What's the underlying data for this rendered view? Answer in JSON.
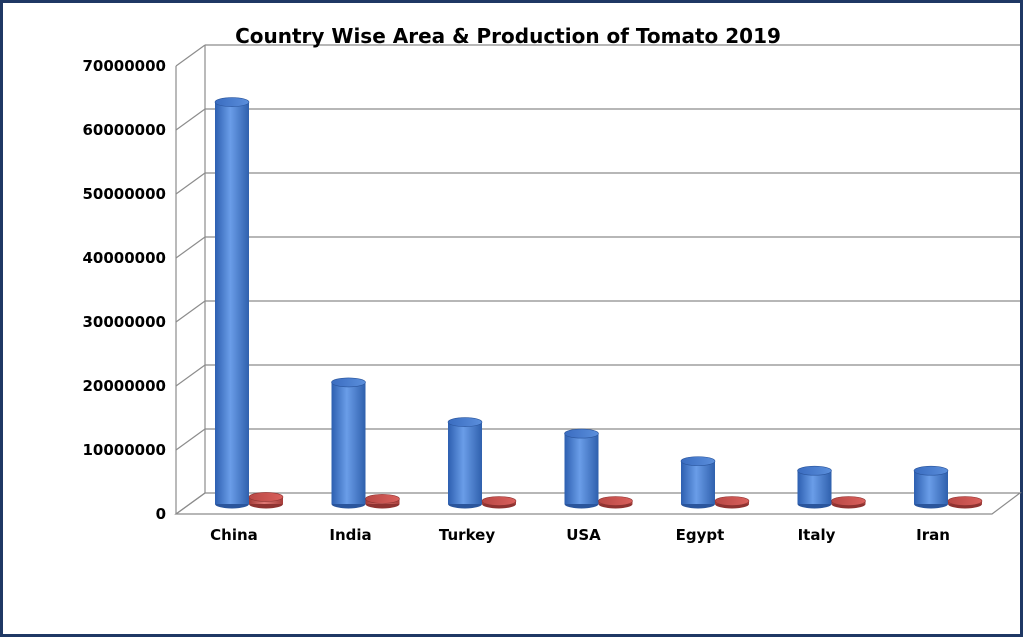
{
  "chart_data": {
    "type": "bar",
    "title": "Country Wise Area & Production of Tomato 2019",
    "categories": [
      "China",
      "India",
      "Turkey",
      "USA",
      "Egypt",
      "Italy",
      "Iran"
    ],
    "series": [
      {
        "values": [
          62800000,
          19000000,
          12800000,
          11000000,
          6700000,
          5200000,
          5200000
        ],
        "color": "#4f81d6"
      },
      {
        "values": [
          1100000,
          800000,
          180000,
          130000,
          150000,
          100000,
          150000
        ],
        "color": "#c0504d"
      }
    ],
    "yticks": [
      "0",
      "10000000",
      "20000000",
      "30000000",
      "40000000",
      "50000000",
      "60000000",
      "70000000"
    ],
    "ylim": [
      0,
      70000000
    ],
    "grid": true,
    "legend": "none",
    "style": "3d-cylinder"
  }
}
